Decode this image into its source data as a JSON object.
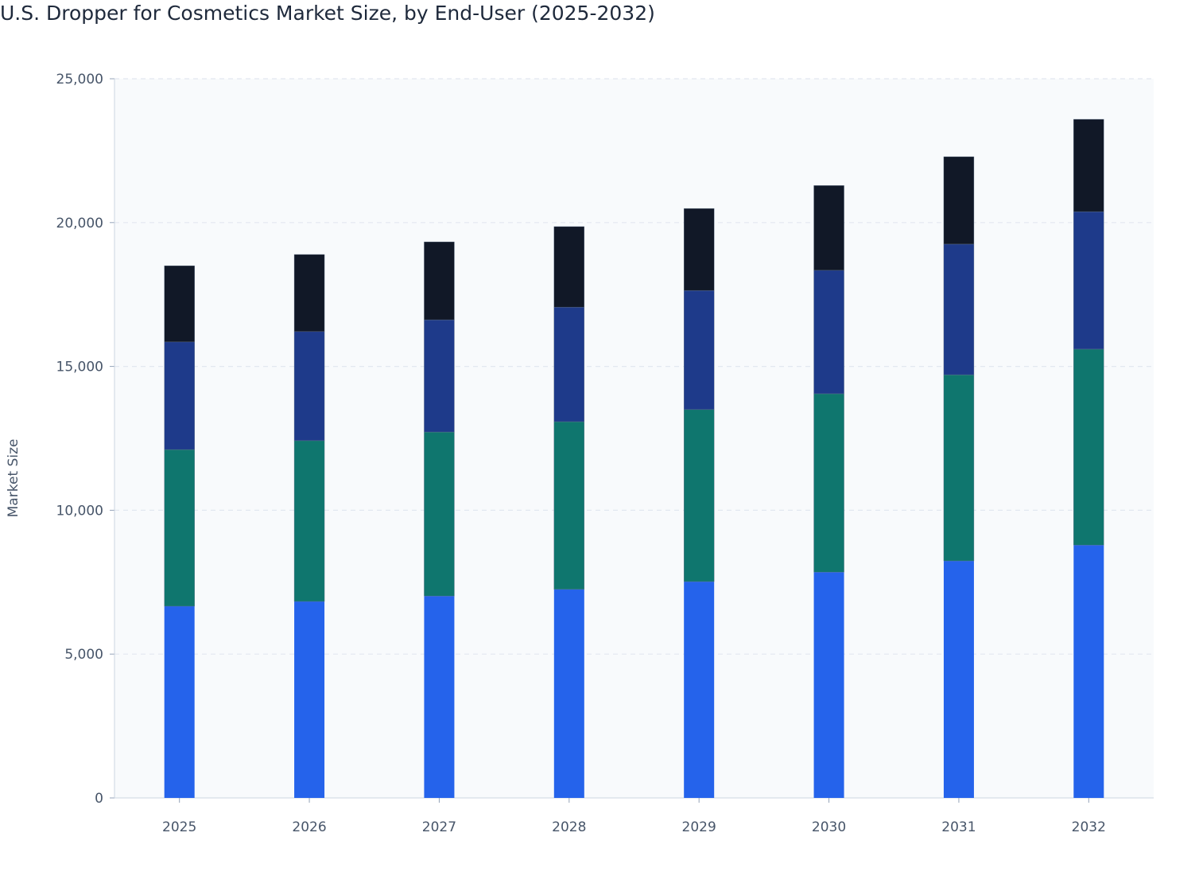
{
  "chart_data": {
    "type": "bar",
    "stacked": true,
    "title": "U.S. Dropper for Cosmetics Market Size, by End-User (2025-2032)",
    "xlabel": "",
    "ylabel": "Market Size",
    "ylim": [
      0,
      25000
    ],
    "yticks": [
      0,
      5000,
      10000,
      15000,
      20000,
      25000
    ],
    "ytick_labels": [
      "0",
      "5,000",
      "10,000",
      "15,000",
      "20,000",
      "25,000"
    ],
    "grid": "horizontal dashed",
    "legend": "none",
    "categories": [
      "2025",
      "2026",
      "2027",
      "2028",
      "2029",
      "2030",
      "2031",
      "2032"
    ],
    "series": [
      {
        "color": "#2563eb",
        "values": [
          6665,
          6830,
          7020,
          7250,
          7520,
          7850,
          8240,
          8790
        ]
      },
      {
        "color": "#0f766e",
        "values": [
          5445,
          5590,
          5700,
          5830,
          5980,
          6200,
          6470,
          6810
        ]
      },
      {
        "color": "#1e3a8a",
        "values": [
          3740,
          3790,
          3900,
          3980,
          4140,
          4290,
          4540,
          4780
        ]
      },
      {
        "color": "#111827",
        "values": [
          2650,
          2680,
          2710,
          2800,
          2850,
          2950,
          3040,
          3210
        ]
      }
    ]
  }
}
